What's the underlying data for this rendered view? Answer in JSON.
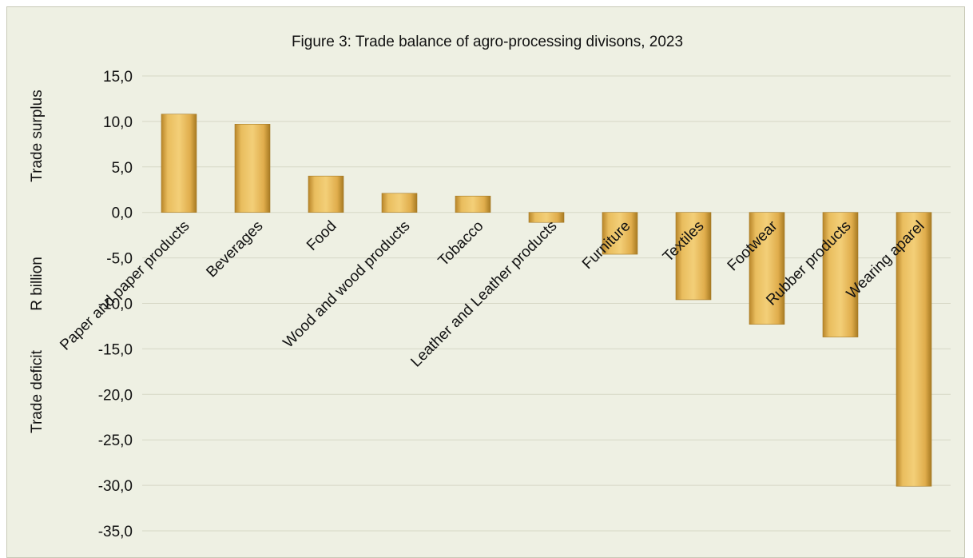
{
  "chart_data": {
    "type": "bar",
    "title": "Figure 3: Trade balance of agro-processing divisons, 2023",
    "ylabel_top": "Trade surplus",
    "ylabel_middle": "R billion",
    "ylabel_bottom": "Trade deficit",
    "categories": [
      "Paper and paper products",
      "Beverages",
      "Food",
      "Wood and wood products",
      "Tobacco",
      "Leather and Leather products",
      "Furniture",
      "Textiles",
      "Footwear",
      "Rubber products",
      "Wearing aparel"
    ],
    "values": [
      10.8,
      9.7,
      4.0,
      2.1,
      1.8,
      -1.1,
      -4.6,
      -9.6,
      -12.3,
      -13.7,
      -30.1
    ],
    "ylim": [
      -35,
      15
    ],
    "yticks": [
      "15,0",
      "10,0",
      "5,0",
      "0,0",
      "-5,0",
      "-10,0",
      "-15,0",
      "-20,0",
      "-25,0",
      "-30,0",
      "-35,0"
    ],
    "grid": true,
    "bar_color": "#e2b455"
  }
}
